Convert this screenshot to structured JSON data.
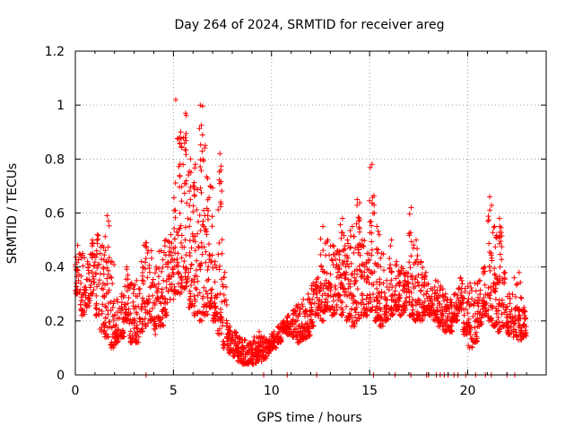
{
  "chart_data": {
    "type": "scatter",
    "title": "Day 264 of 2024, SRMTID for receiver areg",
    "xlabel": "GPS time / hours",
    "ylabel": "SRMTID / TECUs",
    "xlim": [
      0,
      24
    ],
    "ylim": [
      0,
      1.2
    ],
    "xticks": [
      0,
      5,
      10,
      15,
      20
    ],
    "yticks": [
      0,
      0.2,
      0.4,
      0.6,
      0.8,
      1.0,
      1.2
    ],
    "ytick_labels": [
      "0",
      "0.2",
      "0.4",
      "0.6",
      "0.8",
      "1",
      "1.2"
    ],
    "grid": true,
    "marker": "+",
    "color": "#ff0000",
    "series": [
      {
        "name": "areg",
        "envelope_x": [
          0.0,
          0.25,
          0.5,
          0.75,
          1.0,
          1.25,
          1.5,
          1.75,
          2.0,
          2.25,
          2.5,
          2.75,
          3.0,
          3.25,
          3.5,
          3.75,
          4.0,
          4.25,
          4.5,
          4.75,
          5.0,
          5.25,
          5.5,
          5.75,
          6.0,
          6.25,
          6.5,
          6.75,
          7.0,
          7.25,
          7.5,
          7.75,
          8.0,
          8.25,
          8.5,
          8.75,
          9.0,
          9.25,
          9.5,
          9.75,
          10.0,
          10.25,
          10.5,
          10.75,
          11.0,
          11.25,
          11.5,
          11.75,
          12.0,
          12.25,
          12.5,
          12.75,
          13.0,
          13.25,
          13.5,
          13.75,
          14.0,
          14.25,
          14.5,
          14.75,
          15.0,
          15.25,
          15.5,
          15.75,
          16.0,
          16.25,
          16.5,
          16.75,
          17.0,
          17.25,
          17.5,
          17.75,
          18.0,
          18.25,
          18.5,
          18.75,
          19.0,
          19.25,
          19.5,
          19.75,
          20.0,
          20.25,
          20.5,
          20.75,
          21.0,
          21.25,
          21.5,
          21.75,
          22.0,
          22.25,
          22.5,
          22.75
        ],
        "envelope_low": [
          0.3,
          0.22,
          0.25,
          0.3,
          0.22,
          0.16,
          0.14,
          0.1,
          0.12,
          0.14,
          0.2,
          0.12,
          0.12,
          0.16,
          0.18,
          0.2,
          0.15,
          0.18,
          0.22,
          0.28,
          0.3,
          0.3,
          0.32,
          0.25,
          0.22,
          0.2,
          0.22,
          0.25,
          0.2,
          0.15,
          0.1,
          0.08,
          0.07,
          0.05,
          0.04,
          0.04,
          0.04,
          0.05,
          0.06,
          0.08,
          0.1,
          0.12,
          0.16,
          0.15,
          0.14,
          0.12,
          0.13,
          0.14,
          0.18,
          0.22,
          0.2,
          0.24,
          0.22,
          0.24,
          0.22,
          0.2,
          0.18,
          0.2,
          0.22,
          0.22,
          0.24,
          0.2,
          0.18,
          0.2,
          0.22,
          0.24,
          0.22,
          0.24,
          0.22,
          0.2,
          0.2,
          0.22,
          0.22,
          0.2,
          0.18,
          0.16,
          0.16,
          0.2,
          0.24,
          0.15,
          0.1,
          0.12,
          0.18,
          0.22,
          0.2,
          0.18,
          0.16,
          0.18,
          0.15,
          0.14,
          0.13,
          0.14
        ],
        "envelope_high": [
          0.48,
          0.45,
          0.42,
          0.5,
          0.52,
          0.48,
          0.59,
          0.42,
          0.28,
          0.3,
          0.4,
          0.34,
          0.35,
          0.42,
          0.49,
          0.46,
          0.4,
          0.46,
          0.5,
          0.52,
          1.02,
          0.9,
          0.97,
          0.8,
          0.78,
          1.0,
          0.85,
          0.7,
          0.42,
          0.82,
          0.38,
          0.18,
          0.16,
          0.14,
          0.13,
          0.12,
          0.14,
          0.16,
          0.14,
          0.13,
          0.16,
          0.18,
          0.2,
          0.22,
          0.24,
          0.26,
          0.28,
          0.3,
          0.34,
          0.36,
          0.55,
          0.5,
          0.48,
          0.46,
          0.58,
          0.5,
          0.55,
          0.65,
          0.5,
          0.45,
          0.78,
          0.55,
          0.45,
          0.35,
          0.5,
          0.42,
          0.4,
          0.38,
          0.62,
          0.5,
          0.42,
          0.38,
          0.32,
          0.35,
          0.33,
          0.3,
          0.28,
          0.3,
          0.36,
          0.32,
          0.34,
          0.34,
          0.35,
          0.4,
          0.66,
          0.55,
          0.58,
          0.38,
          0.3,
          0.36,
          0.38,
          0.25
        ],
        "baseline_x": [
          3.6,
          9.6,
          10.8,
          12.3,
          15.2,
          16.3,
          17.1,
          17.9,
          18.0,
          18.4,
          18.6,
          18.8,
          19.0,
          19.3,
          19.5,
          19.9,
          20.4,
          20.9,
          21.2,
          22.0,
          22.4
        ]
      }
    ]
  }
}
